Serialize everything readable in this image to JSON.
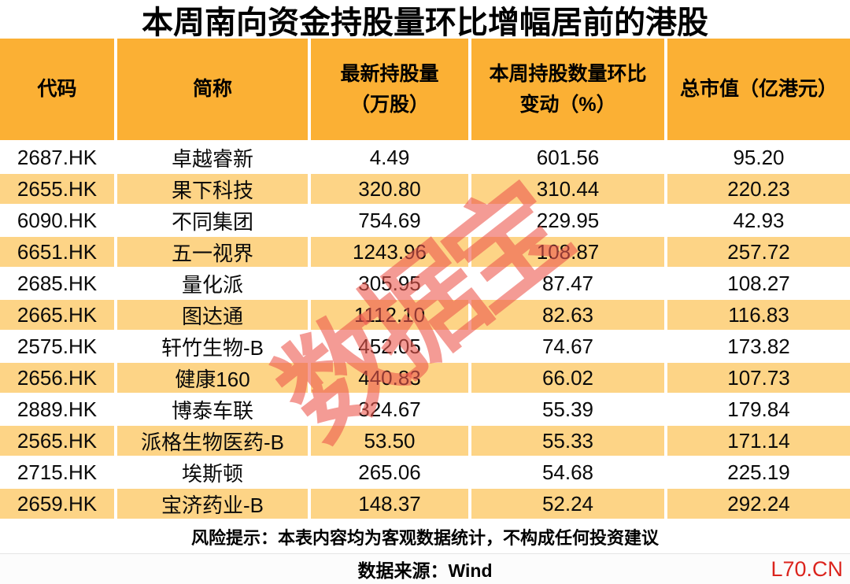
{
  "title": "本周南向资金持股量环比增幅居前的港股",
  "watermark": "数据宝",
  "colors": {
    "header_bg": "#FBB034",
    "row_alt_bg": "#FDD486",
    "row_bg": "#FFFFFF",
    "watermark_red": "#EC584F",
    "brand_red": "#DB241D",
    "text": "#000000"
  },
  "table": {
    "header_lines": [
      [
        "代码"
      ],
      [
        "简称"
      ],
      [
        "最新持股量",
        "（万股）"
      ],
      [
        "本周持股数量环比",
        "变动（%）"
      ],
      [
        "总市值（亿港元）"
      ]
    ],
    "rows": [
      [
        "2687.HK",
        "卓越睿新",
        "4.49",
        "601.56",
        "95.20"
      ],
      [
        "2655.HK",
        "果下科技",
        "320.80",
        "310.44",
        "220.23"
      ],
      [
        "6090.HK",
        "不同集团",
        "754.69",
        "229.95",
        "42.93"
      ],
      [
        "6651.HK",
        "五一视界",
        "1243.96",
        "108.87",
        "257.72"
      ],
      [
        "2685.HK",
        "量化派",
        "305.95",
        "87.47",
        "108.27"
      ],
      [
        "2665.HK",
        "图达通",
        "1112.10",
        "82.63",
        "116.83"
      ],
      [
        "2575.HK",
        "轩竹生物-B",
        "452.05",
        "74.67",
        "173.82"
      ],
      [
        "2656.HK",
        "健康160",
        "440.83",
        "66.02",
        "107.73"
      ],
      [
        "2889.HK",
        "博泰车联",
        "324.67",
        "55.39",
        "179.84"
      ],
      [
        "2565.HK",
        "派格生物医药-B",
        "53.50",
        "55.33",
        "171.14"
      ],
      [
        "2715.HK",
        "埃斯顿",
        "265.06",
        "54.68",
        "225.19"
      ],
      [
        "2659.HK",
        "宝济药业-B",
        "148.37",
        "52.24",
        "292.24"
      ]
    ]
  },
  "chart_data": {
    "type": "table",
    "title": "本周南向资金持股量环比增幅居前的港股",
    "columns": [
      "代码",
      "简称",
      "最新持股量（万股）",
      "本周持股数量环比变动（%）",
      "总市值（亿港元）"
    ],
    "rows": [
      {
        "code": "2687.HK",
        "name": "卓越睿新",
        "latest_holding_wan": 4.49,
        "weekly_change_pct": 601.56,
        "market_cap_hkd_100m": 95.2
      },
      {
        "code": "2655.HK",
        "name": "果下科技",
        "latest_holding_wan": 320.8,
        "weekly_change_pct": 310.44,
        "market_cap_hkd_100m": 220.23
      },
      {
        "code": "6090.HK",
        "name": "不同集团",
        "latest_holding_wan": 754.69,
        "weekly_change_pct": 229.95,
        "market_cap_hkd_100m": 42.93
      },
      {
        "code": "6651.HK",
        "name": "五一视界",
        "latest_holding_wan": 1243.96,
        "weekly_change_pct": 108.87,
        "market_cap_hkd_100m": 257.72
      },
      {
        "code": "2685.HK",
        "name": "量化派",
        "latest_holding_wan": 305.95,
        "weekly_change_pct": 87.47,
        "market_cap_hkd_100m": 108.27
      },
      {
        "code": "2665.HK",
        "name": "图达通",
        "latest_holding_wan": 1112.1,
        "weekly_change_pct": 82.63,
        "market_cap_hkd_100m": 116.83
      },
      {
        "code": "2575.HK",
        "name": "轩竹生物-B",
        "latest_holding_wan": 452.05,
        "weekly_change_pct": 74.67,
        "market_cap_hkd_100m": 173.82
      },
      {
        "code": "2656.HK",
        "name": "健康160",
        "latest_holding_wan": 440.83,
        "weekly_change_pct": 66.02,
        "market_cap_hkd_100m": 107.73
      },
      {
        "code": "2889.HK",
        "name": "博泰车联",
        "latest_holding_wan": 324.67,
        "weekly_change_pct": 55.39,
        "market_cap_hkd_100m": 179.84
      },
      {
        "code": "2565.HK",
        "name": "派格生物医药-B",
        "latest_holding_wan": 53.5,
        "weekly_change_pct": 55.33,
        "market_cap_hkd_100m": 171.14
      },
      {
        "code": "2715.HK",
        "name": "埃斯顿",
        "latest_holding_wan": 265.06,
        "weekly_change_pct": 54.68,
        "market_cap_hkd_100m": 225.19
      },
      {
        "code": "2659.HK",
        "name": "宝济药业-B",
        "latest_holding_wan": 148.37,
        "weekly_change_pct": 52.24,
        "market_cap_hkd_100m": 292.24
      }
    ]
  },
  "footer": {
    "disclaimer": "风险提示：本表内容均为客观数据统计，不构成任何投资建议",
    "source": "数据来源：Wind",
    "brand": "L70.CN"
  }
}
